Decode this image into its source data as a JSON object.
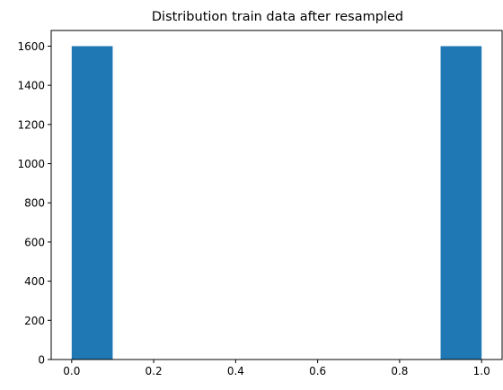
{
  "chart_data": {
    "type": "bar",
    "title": "Distribution train data after resampled",
    "xlabel": "",
    "ylabel": "",
    "xlim": [
      -0.05,
      1.05
    ],
    "ylim": [
      0,
      1680
    ],
    "x_ticks": [
      0.0,
      0.2,
      0.4,
      0.6,
      0.8,
      1.0
    ],
    "x_tick_labels": [
      "0.0",
      "0.2",
      "0.4",
      "0.6",
      "0.8",
      "1.0"
    ],
    "y_ticks": [
      0,
      200,
      400,
      600,
      800,
      1000,
      1200,
      1400,
      1600
    ],
    "y_tick_labels": [
      "0",
      "200",
      "400",
      "600",
      "800",
      "1000",
      "1200",
      "1400",
      "1600"
    ],
    "bins": [
      {
        "start": 0.0,
        "end": 0.1,
        "value": 1600
      },
      {
        "start": 0.1,
        "end": 0.2,
        "value": 0
      },
      {
        "start": 0.2,
        "end": 0.3,
        "value": 0
      },
      {
        "start": 0.3,
        "end": 0.4,
        "value": 0
      },
      {
        "start": 0.4,
        "end": 0.5,
        "value": 0
      },
      {
        "start": 0.5,
        "end": 0.6,
        "value": 0
      },
      {
        "start": 0.6,
        "end": 0.7,
        "value": 0
      },
      {
        "start": 0.7,
        "end": 0.8,
        "value": 0
      },
      {
        "start": 0.8,
        "end": 0.9,
        "value": 0
      },
      {
        "start": 0.9,
        "end": 1.0,
        "value": 1600
      }
    ],
    "bar_color": "#1f77b4",
    "grid": false,
    "legend": "none"
  }
}
